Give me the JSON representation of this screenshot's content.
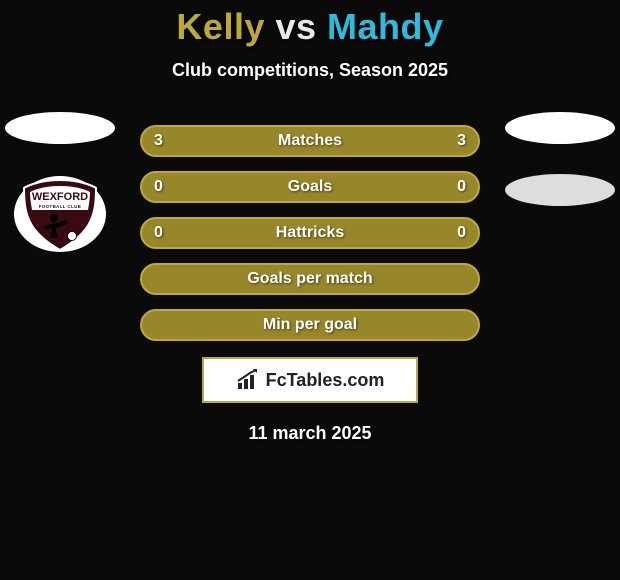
{
  "colors": {
    "background": "#0a0a0a",
    "row_fill": "#97872a",
    "row_border": "#bca93a",
    "title_p1": "#bca93a",
    "title_vs": "#e8e8e8",
    "title_p2": "#2fb9da",
    "subtitle": "#ffffff",
    "row_text": "#ffffff",
    "brand_border": "#bca93a",
    "brand_bg": "#ffffff",
    "brand_text": "#222222",
    "date_text": "#ffffff"
  },
  "title": {
    "player1": "Kelly",
    "vs": "vs",
    "player2": "Mahdy",
    "fontsize": 36
  },
  "subtitle": "Club competitions, Season 2025",
  "rows": [
    {
      "label": "Matches",
      "left": "3",
      "right": "3"
    },
    {
      "label": "Goals",
      "left": "0",
      "right": "0"
    },
    {
      "label": "Hattricks",
      "left": "0",
      "right": "0"
    },
    {
      "label": "Goals per match",
      "left": "",
      "right": ""
    },
    {
      "label": "Min per goal",
      "left": "",
      "right": ""
    }
  ],
  "brand": {
    "icon": "bar-chart-icon",
    "text": "FcTables.com"
  },
  "date": "11 march 2025",
  "badges": {
    "left_country_color": "#ffffff",
    "right_country_color": "#f2f2f2",
    "left_club_name": "WEXFORD",
    "left_club_sub": "FOOTBALL CLUB",
    "left_club_shield": "#3a0a12",
    "left_club_border": "#ffffff"
  }
}
